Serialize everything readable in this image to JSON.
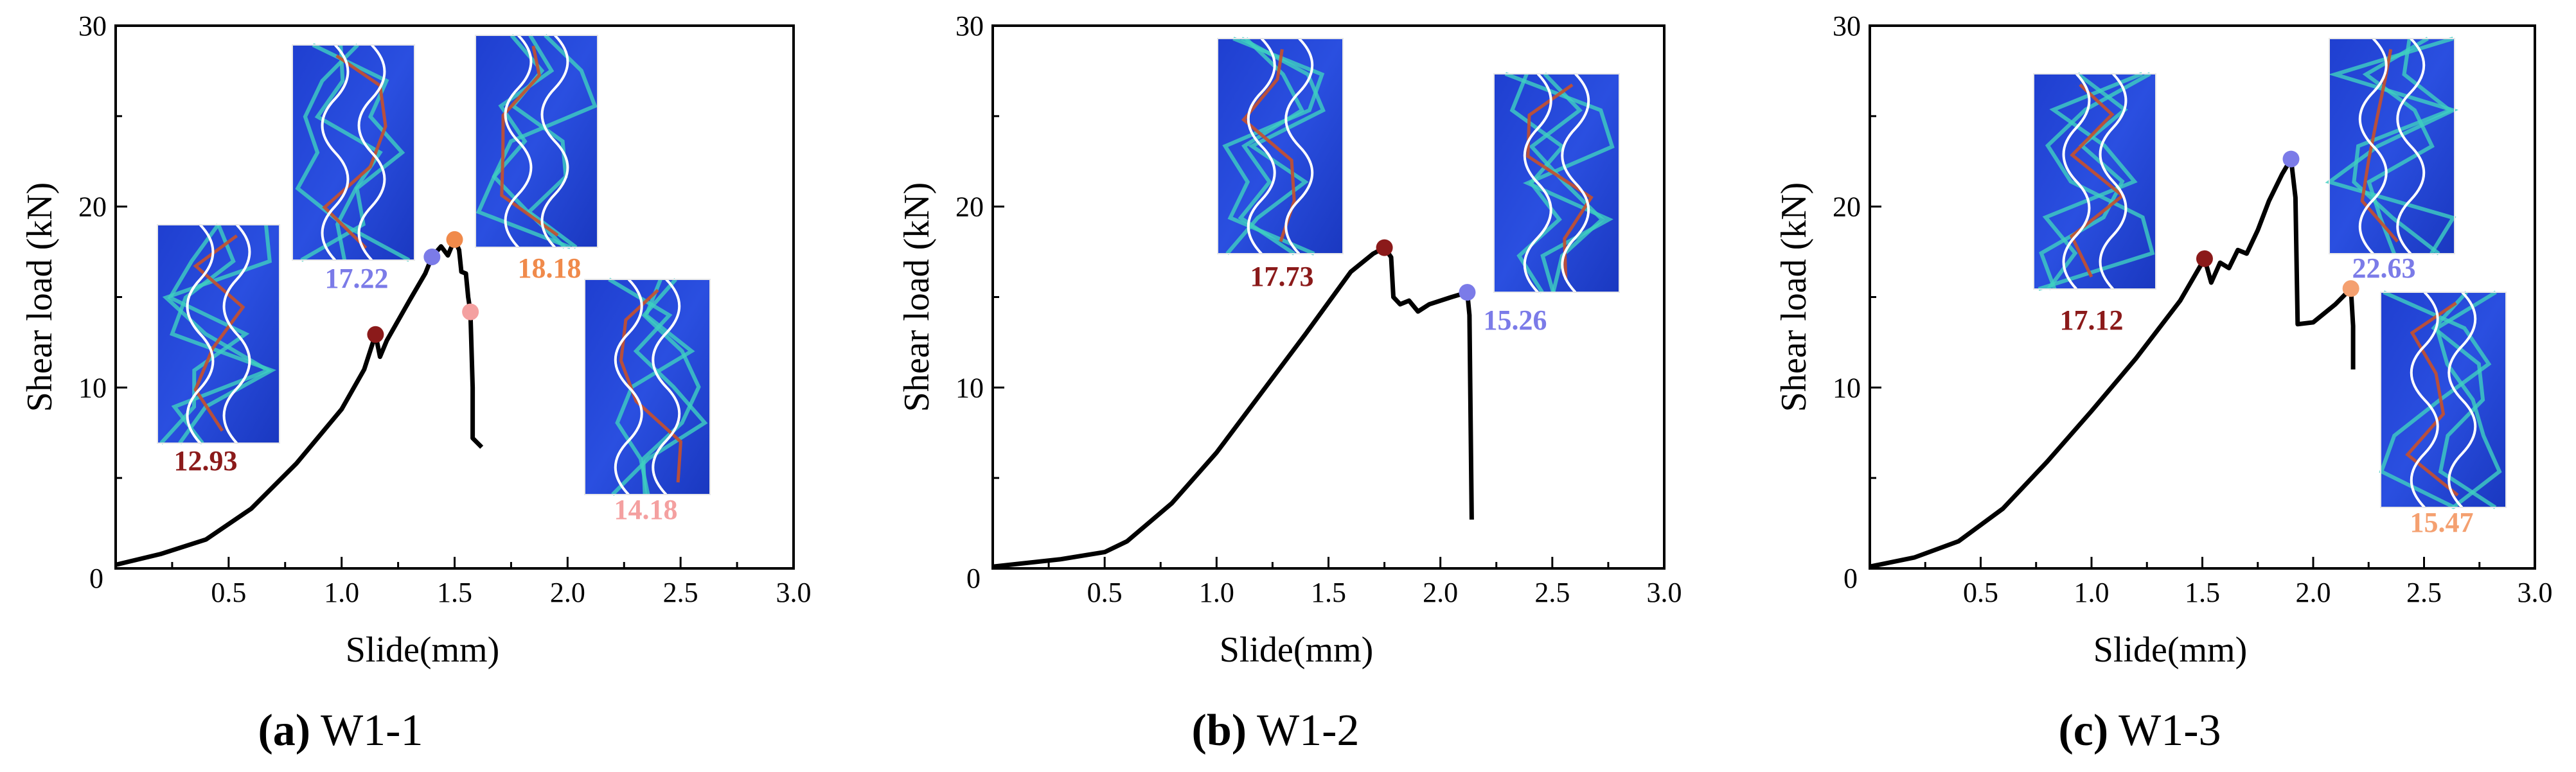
{
  "chart_data": [
    {
      "panel": "a",
      "caption_label": "(a)",
      "caption_name": "W1-1",
      "type": "line",
      "xlabel": "Slide(mm)",
      "ylabel": "Shear load (kN)",
      "xlim": [
        0,
        3.0
      ],
      "ylim": [
        0,
        30
      ],
      "x_ticks": [
        "0.5",
        "1.0",
        "1.5",
        "2.0",
        "2.5",
        "3.0"
      ],
      "y_ticks": [
        "10",
        "20",
        "30"
      ],
      "origin_label": "0",
      "series": [
        {
          "color": "#000000",
          "points": [
            [
              0,
              0.2
            ],
            [
              0.2,
              0.8
            ],
            [
              0.4,
              1.6
            ],
            [
              0.6,
              3.3
            ],
            [
              0.8,
              5.8
            ],
            [
              1.0,
              8.8
            ],
            [
              1.1,
              11.0
            ],
            [
              1.15,
              12.93
            ],
            [
              1.17,
              11.7
            ],
            [
              1.2,
              12.6
            ],
            [
              1.3,
              14.8
            ],
            [
              1.37,
              16.3
            ],
            [
              1.4,
              17.22
            ],
            [
              1.44,
              17.8
            ],
            [
              1.47,
              17.3
            ],
            [
              1.5,
              18.18
            ],
            [
              1.52,
              17.6
            ],
            [
              1.53,
              16.4
            ],
            [
              1.55,
              16.3
            ],
            [
              1.56,
              15.0
            ],
            [
              1.57,
              14.18
            ],
            [
              1.58,
              10.0
            ],
            [
              1.58,
              7.2
            ],
            [
              1.62,
              6.7
            ]
          ]
        }
      ],
      "markers": [
        {
          "x": 1.15,
          "y": 12.93,
          "label": "12.93",
          "color": "#8b1a1a"
        },
        {
          "x": 1.4,
          "y": 17.22,
          "label": "17.22",
          "color": "#7b7be8"
        },
        {
          "x": 1.5,
          "y": 18.18,
          "label": "18.18",
          "color": "#f08a4b"
        },
        {
          "x": 1.57,
          "y": 14.18,
          "label": "14.18",
          "color": "#f4a0a0"
        }
      ]
    },
    {
      "panel": "b",
      "caption_label": "(b)",
      "caption_name": "W1-2",
      "type": "line",
      "xlabel": "Slide(mm)",
      "ylabel": "Shear load (kN)",
      "xlim": [
        0,
        3.0
      ],
      "ylim": [
        0,
        30
      ],
      "x_ticks": [
        "0.5",
        "1.0",
        "1.5",
        "2.0",
        "2.5",
        "3.0"
      ],
      "y_ticks": [
        "10",
        "20",
        "30"
      ],
      "origin_label": "0",
      "series": [
        {
          "color": "#000000",
          "points": [
            [
              0,
              0.1
            ],
            [
              0.3,
              0.5
            ],
            [
              0.5,
              0.9
            ],
            [
              0.6,
              1.5
            ],
            [
              0.8,
              3.6
            ],
            [
              1.0,
              6.4
            ],
            [
              1.2,
              9.7
            ],
            [
              1.4,
              13.0
            ],
            [
              1.6,
              16.4
            ],
            [
              1.7,
              17.4
            ],
            [
              1.75,
              17.73
            ],
            [
              1.78,
              17.2
            ],
            [
              1.79,
              15.0
            ],
            [
              1.82,
              14.6
            ],
            [
              1.86,
              14.8
            ],
            [
              1.9,
              14.2
            ],
            [
              1.95,
              14.6
            ],
            [
              2.05,
              15.0
            ],
            [
              2.12,
              15.26
            ],
            [
              2.13,
              14.0
            ],
            [
              2.14,
              2.7
            ]
          ]
        }
      ],
      "markers": [
        {
          "x": 1.75,
          "y": 17.73,
          "label": "17.73",
          "color": "#8b1a1a"
        },
        {
          "x": 2.12,
          "y": 15.26,
          "label": "15.26",
          "color": "#7b7be8"
        }
      ]
    },
    {
      "panel": "c",
      "caption_label": "(c)",
      "caption_name": "W1-3",
      "type": "line",
      "xlabel": "Slide(mm)",
      "ylabel": "Shear load (kN)",
      "xlim": [
        0,
        3.0
      ],
      "ylim": [
        0,
        30
      ],
      "x_ticks": [
        "0.5",
        "1.0",
        "1.5",
        "2.0",
        "2.5",
        "3.0"
      ],
      "y_ticks": [
        "10",
        "20",
        "30"
      ],
      "origin_label": "0",
      "series": [
        {
          "color": "#000000",
          "points": [
            [
              0,
              0.1
            ],
            [
              0.2,
              0.6
            ],
            [
              0.4,
              1.5
            ],
            [
              0.6,
              3.3
            ],
            [
              0.8,
              5.9
            ],
            [
              1.0,
              8.7
            ],
            [
              1.2,
              11.6
            ],
            [
              1.4,
              14.8
            ],
            [
              1.51,
              17.12
            ],
            [
              1.54,
              15.8
            ],
            [
              1.58,
              16.9
            ],
            [
              1.62,
              16.6
            ],
            [
              1.66,
              17.6
            ],
            [
              1.7,
              17.4
            ],
            [
              1.75,
              18.7
            ],
            [
              1.8,
              20.3
            ],
            [
              1.86,
              21.8
            ],
            [
              1.9,
              22.63
            ],
            [
              1.92,
              20.5
            ],
            [
              1.93,
              13.5
            ],
            [
              2.0,
              13.6
            ],
            [
              2.1,
              14.6
            ],
            [
              2.17,
              15.47
            ],
            [
              2.18,
              13.4
            ],
            [
              2.18,
              11.0
            ]
          ]
        }
      ],
      "markers": [
        {
          "x": 1.51,
          "y": 17.12,
          "label": "17.12",
          "color": "#8b1a1a"
        },
        {
          "x": 1.9,
          "y": 22.63,
          "label": "22.63",
          "color": "#7b7be8"
        },
        {
          "x": 2.17,
          "y": 15.47,
          "label": "15.47",
          "color": "#f4a070"
        }
      ]
    }
  ]
}
